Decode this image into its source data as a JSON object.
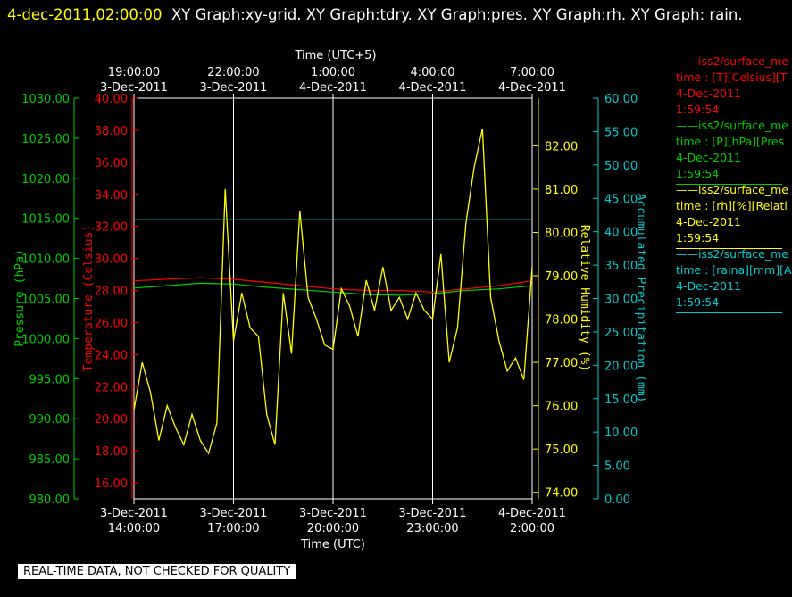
{
  "title": {
    "timestamp": "4-dec-2011,02:00:00",
    "text": "XY Graph:xy-grid.  XY Graph:tdry.  XY Graph:pres.  XY Graph:rh.  XY Graph: rain."
  },
  "footer_note": "REAL-TIME DATA, NOT CHECKED FOR QUALITY",
  "colors": {
    "pressure": "#00cc00",
    "temperature": "#ff0000",
    "rh": "#ffff00",
    "rain": "#00cccc",
    "grid": "#ffffff"
  },
  "legend": [
    {
      "name": "iss2/surface_me",
      "detail": "time : [T][Celsius][T",
      "date": "4-Dec-2011",
      "time": "1:59:54",
      "color": "#ff0000"
    },
    {
      "name": "iss2/surface_me",
      "detail": "time : [P][hPa][Pres",
      "date": "4-Dec-2011",
      "time": "1:59:54",
      "color": "#00cc00"
    },
    {
      "name": "iss2/surface_me",
      "detail": "time : [rh][%][Relati",
      "date": "4-Dec-2011",
      "time": "1:59:54",
      "color": "#ffff00"
    },
    {
      "name": "iss2/surface_me",
      "detail": "time : [raina][mm][A",
      "date": "4-Dec-2011",
      "time": "1:59:54",
      "color": "#00cccc"
    }
  ],
  "chart_data": {
    "type": "line",
    "grid": true,
    "x_bottom": {
      "label": "Time (UTC)",
      "range": [
        "2011-12-03T14:00",
        "2011-12-04T02:00"
      ],
      "ticks": [
        {
          "value": "2011-12-03T14:00",
          "line1": "3-Dec-2011",
          "line2": "14:00:00"
        },
        {
          "value": "2011-12-03T17:00",
          "line1": "3-Dec-2011",
          "line2": "17:00:00"
        },
        {
          "value": "2011-12-03T20:00",
          "line1": "3-Dec-2011",
          "line2": "20:00:00"
        },
        {
          "value": "2011-12-03T23:00",
          "line1": "3-Dec-2011",
          "line2": "23:00:00"
        },
        {
          "value": "2011-12-04T02:00",
          "line1": "4-Dec-2011",
          "line2": "2:00:00"
        }
      ]
    },
    "x_top": {
      "label": "Time (UTC+5)",
      "ticks": [
        {
          "value": "2011-12-03T19:00",
          "line1": "19:00:00",
          "line2": "3-Dec-2011"
        },
        {
          "value": "2011-12-03T22:00",
          "line1": "22:00:00",
          "line2": "3-Dec-2011"
        },
        {
          "value": "2011-12-04T01:00",
          "line1": "1:00:00",
          "line2": "4-Dec-2011"
        },
        {
          "value": "2011-12-04T04:00",
          "line1": "4:00:00",
          "line2": "4-Dec-2011"
        },
        {
          "value": "2011-12-04T07:00",
          "line1": "7:00:00",
          "line2": "4-Dec-2011"
        }
      ]
    },
    "axes": {
      "pressure": {
        "label": "Pressure (hPa)",
        "range": [
          980,
          1030
        ],
        "ticks": [
          "980.00",
          "985.00",
          "990.00",
          "995.00",
          "1000.00",
          "1005.00",
          "1010.00",
          "1015.00",
          "1020.00",
          "1025.00",
          "1030.00"
        ]
      },
      "temperature": {
        "label": "Temperature (Celsius)",
        "range": [
          15,
          40
        ],
        "ticks": [
          "16.00",
          "18.00",
          "20.00",
          "22.00",
          "24.00",
          "26.00",
          "28.00",
          "30.00",
          "32.00",
          "34.00",
          "36.00",
          "38.00",
          "40.00"
        ]
      },
      "rh": {
        "label": "Relative Humidity (%)",
        "range": [
          73.85,
          83.1
        ],
        "ticks": [
          "74.00",
          "75.00",
          "76.00",
          "77.00",
          "78.00",
          "79.00",
          "80.00",
          "81.00",
          "82.00"
        ]
      },
      "rain": {
        "label": "Accumulated Precipitation (mm)",
        "range": [
          0,
          60
        ],
        "ticks": [
          "0.00",
          "5.00",
          "10.00",
          "15.00",
          "20.00",
          "25.00",
          "30.00",
          "35.00",
          "40.00",
          "45.00",
          "50.00",
          "55.00",
          "60.00"
        ]
      }
    },
    "series": [
      {
        "name": "Temperature",
        "axis": "temperature",
        "x": [
          "2011-12-03T14:00",
          "2011-12-03T15:00",
          "2011-12-03T16:00",
          "2011-12-03T17:00",
          "2011-12-03T18:00",
          "2011-12-03T19:00",
          "2011-12-03T20:00",
          "2011-12-03T21:00",
          "2011-12-03T22:00",
          "2011-12-03T23:00",
          "2011-12-04T00:00",
          "2011-12-04T01:00",
          "2011-12-04T02:00"
        ],
        "y": [
          28.6,
          28.7,
          28.8,
          28.7,
          28.5,
          28.3,
          28.1,
          28.0,
          28.0,
          27.9,
          28.1,
          28.3,
          28.6
        ]
      },
      {
        "name": "Pressure",
        "axis": "pressure",
        "x": [
          "2011-12-03T14:00",
          "2011-12-03T15:00",
          "2011-12-03T16:00",
          "2011-12-03T17:00",
          "2011-12-03T18:00",
          "2011-12-03T19:00",
          "2011-12-03T20:00",
          "2011-12-03T21:00",
          "2011-12-03T22:00",
          "2011-12-03T23:00",
          "2011-12-04T00:00",
          "2011-12-04T01:00",
          "2011-12-04T02:00"
        ],
        "y": [
          1006.3,
          1006.6,
          1006.9,
          1006.8,
          1006.4,
          1006.1,
          1005.8,
          1005.5,
          1005.4,
          1005.6,
          1006.0,
          1006.2,
          1006.6
        ]
      },
      {
        "name": "Relative Humidity",
        "axis": "rh",
        "x": [
          "2011-12-03T14:00",
          "2011-12-03T14:15",
          "2011-12-03T14:30",
          "2011-12-03T14:45",
          "2011-12-03T15:00",
          "2011-12-03T15:15",
          "2011-12-03T15:30",
          "2011-12-03T15:45",
          "2011-12-03T16:00",
          "2011-12-03T16:15",
          "2011-12-03T16:30",
          "2011-12-03T16:45",
          "2011-12-03T17:00",
          "2011-12-03T17:15",
          "2011-12-03T17:30",
          "2011-12-03T17:45",
          "2011-12-03T18:00",
          "2011-12-03T18:15",
          "2011-12-03T18:30",
          "2011-12-03T18:45",
          "2011-12-03T19:00",
          "2011-12-03T19:15",
          "2011-12-03T19:30",
          "2011-12-03T19:45",
          "2011-12-03T20:00",
          "2011-12-03T20:15",
          "2011-12-03T20:30",
          "2011-12-03T20:45",
          "2011-12-03T21:00",
          "2011-12-03T21:15",
          "2011-12-03T21:30",
          "2011-12-03T21:45",
          "2011-12-03T22:00",
          "2011-12-03T22:15",
          "2011-12-03T22:30",
          "2011-12-03T22:45",
          "2011-12-03T23:00",
          "2011-12-03T23:15",
          "2011-12-03T23:30",
          "2011-12-03T23:45",
          "2011-12-04T00:00",
          "2011-12-04T00:15",
          "2011-12-04T00:30",
          "2011-12-04T00:45",
          "2011-12-04T01:00",
          "2011-12-04T01:15",
          "2011-12-04T01:30",
          "2011-12-04T01:45",
          "2011-12-04T02:00"
        ],
        "y": [
          75.9,
          77.0,
          76.3,
          75.2,
          76.0,
          75.5,
          75.1,
          75.8,
          75.2,
          74.9,
          75.6,
          81.0,
          77.5,
          78.6,
          77.8,
          77.6,
          75.8,
          75.1,
          78.6,
          77.2,
          80.5,
          78.5,
          78.0,
          77.4,
          77.3,
          78.7,
          78.3,
          77.6,
          78.9,
          78.2,
          79.2,
          78.2,
          78.5,
          78.0,
          78.6,
          78.2,
          78.0,
          79.5,
          77.0,
          77.8,
          80.2,
          81.5,
          82.4,
          78.5,
          77.5,
          76.8,
          77.1,
          76.6,
          79.2
        ]
      },
      {
        "name": "Accumulated Precipitation",
        "axis": "rain",
        "x": [
          "2011-12-03T14:00",
          "2011-12-04T02:00"
        ],
        "y": [
          41.8,
          41.8
        ]
      }
    ]
  }
}
